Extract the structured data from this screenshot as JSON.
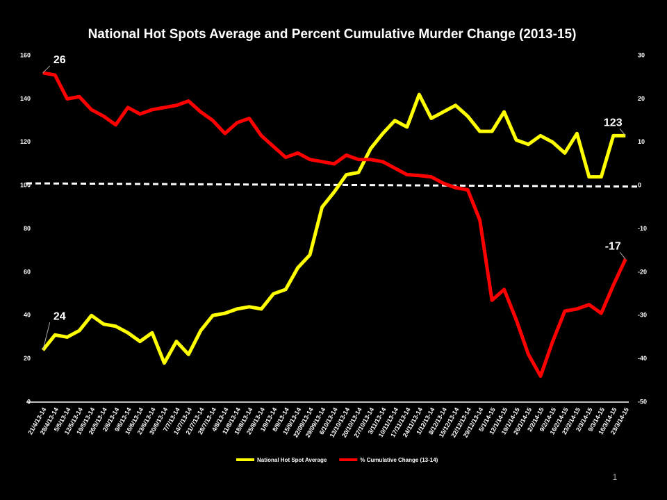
{
  "chart_data": {
    "type": "line",
    "title": "National Hot Spots Average and Percent Cumulative Murder Change (2013-15)",
    "categories": [
      "21/4/13-14",
      "28/4/13-14",
      "5/5/13-14",
      "12/5/13-14",
      "19/5/13-14",
      "26/5/13-14",
      "2/6/13-14",
      "9/6/13-14",
      "16/6/13-14",
      "23/6/13-14",
      "30/6/13-14",
      "7/7/13-14",
      "14/7/13-14",
      "21/7/13-14",
      "28/7/13-14",
      "4/8/13-14",
      "11/8/13-14",
      "18/8/13-14",
      "25/8/13-14",
      "1/9/13-14",
      "8/9/13-14",
      "15/9/13-14",
      "22/09/13-14",
      "29/09/13-14",
      "6/10/13-14",
      "13/10/13-14",
      "20/10/13-14",
      "27/10/13-14",
      "3/11/13-14",
      "10/11/13-14",
      "17/11/13-14",
      "24/11/13-14",
      "1/12/13-14",
      "8/12/13-14",
      "15/12/13-14",
      "22/12/13-14",
      "29/12/13-14",
      "5/1/14-15",
      "12/1/14-15",
      "19/1/14-15",
      "26/1/14-15",
      "2/2/14-15",
      "9/2/14-15",
      "16/2/14-15",
      "23/2/14-15",
      "2/3/14-15",
      "9/3/14-15",
      "16/3/14-15",
      "23/3/14-15"
    ],
    "series": [
      {
        "name": "National Hot Spot Average",
        "color": "#ffff00",
        "axis": "y",
        "values": [
          24,
          31,
          30,
          33,
          40,
          36,
          35,
          32,
          28,
          32,
          18,
          28,
          22,
          33,
          40,
          41,
          43,
          44,
          43,
          50,
          52,
          62,
          68,
          90,
          97,
          105,
          106,
          117,
          124,
          130,
          127,
          142,
          131,
          134,
          137,
          132,
          125,
          125,
          134,
          121,
          119,
          123,
          120,
          115,
          124,
          104,
          104,
          123,
          123
        ],
        "value_labels": [
          "24",
          null,
          null,
          null,
          null,
          null,
          null,
          null,
          null,
          null,
          null,
          null,
          null,
          null,
          null,
          null,
          null,
          null,
          null,
          null,
          null,
          null,
          null,
          null,
          null,
          null,
          null,
          null,
          null,
          null,
          null,
          null,
          null,
          null,
          null,
          null,
          null,
          null,
          null,
          null,
          null,
          null,
          null,
          null,
          null,
          null,
          null,
          null,
          "123"
        ]
      },
      {
        "name": "% Cumulative Change (13-14)",
        "color": "#ff0000",
        "axis": "y2",
        "values": [
          26,
          25.5,
          20,
          20.5,
          17.5,
          16,
          14,
          18,
          16.5,
          17.5,
          18,
          18.5,
          19.5,
          17,
          15,
          12,
          14.5,
          15.5,
          11.5,
          9,
          6.5,
          7.5,
          6,
          5.5,
          5,
          7,
          6,
          6,
          5.5,
          4,
          2.5,
          2.3,
          2,
          0.5,
          -0.5,
          -1,
          -8,
          -26.5,
          -24,
          -31,
          -39,
          -44,
          -36,
          -29,
          -28.5,
          -27.5,
          -29.5,
          -23,
          -17
        ],
        "value_labels": [
          "26",
          null,
          null,
          null,
          null,
          null,
          null,
          null,
          null,
          null,
          null,
          null,
          null,
          null,
          null,
          null,
          null,
          null,
          null,
          null,
          null,
          null,
          null,
          null,
          null,
          null,
          null,
          null,
          null,
          null,
          null,
          null,
          null,
          null,
          null,
          null,
          null,
          null,
          null,
          null,
          null,
          null,
          null,
          null,
          null,
          null,
          null,
          null,
          "-17"
        ]
      }
    ],
    "trendline": {
      "values": [
        101,
        99.5
      ],
      "color": "#ffffff"
    },
    "ylim": [
      0,
      160
    ],
    "yticks": [
      0,
      20,
      40,
      60,
      80,
      100,
      120,
      140,
      160
    ],
    "y2lim": [
      -50,
      30
    ],
    "y2ticks": [
      -50,
      -40,
      -30,
      -20,
      -10,
      0,
      10,
      20,
      30
    ],
    "legend": "bottom",
    "page_number": "1"
  }
}
